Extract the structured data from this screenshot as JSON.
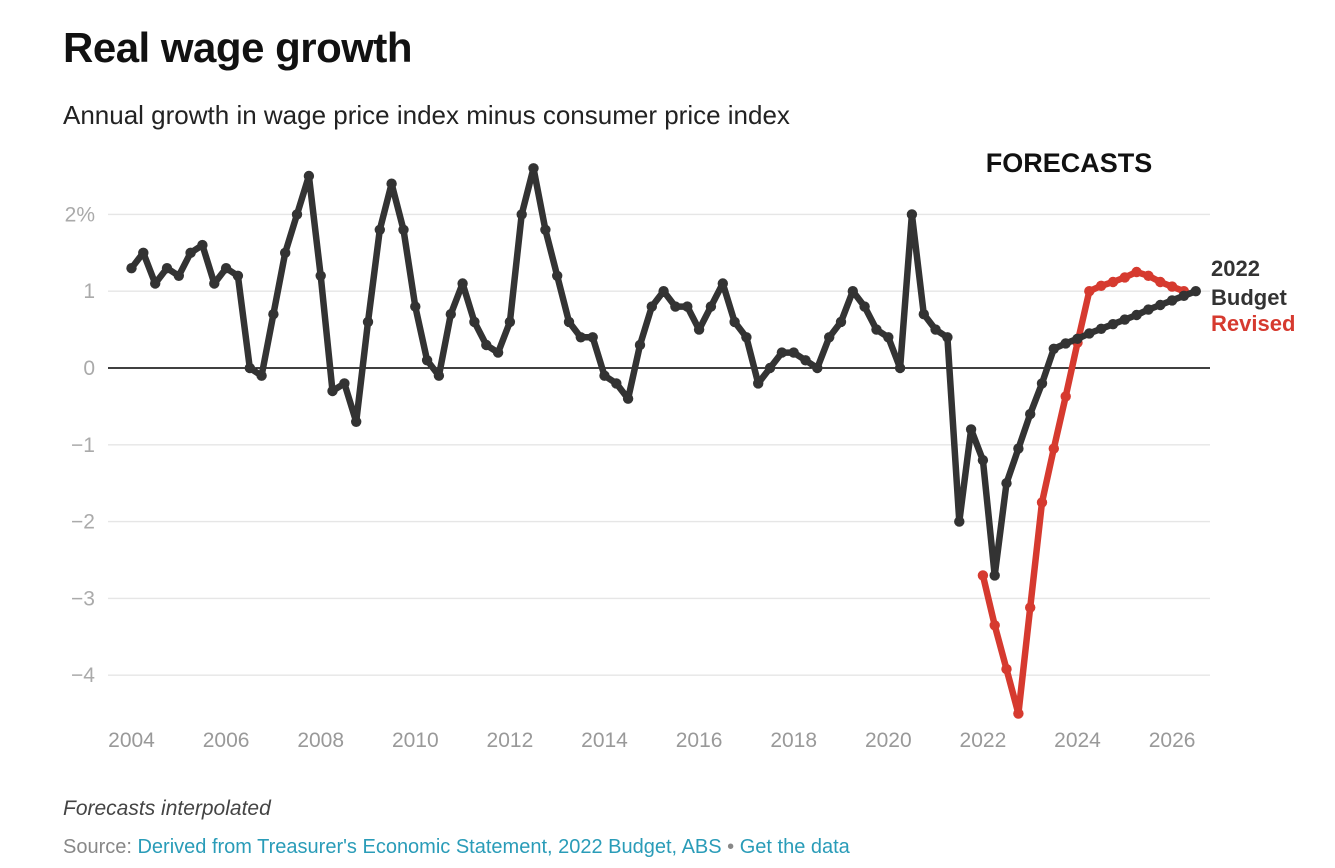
{
  "title": "Real wage growth",
  "subtitle": "Annual growth in wage price index minus consumer price index",
  "note": "Forecasts interpolated",
  "source": {
    "prefix": "Source: ",
    "link_label": "Derived from Treasurer's Economic Statement, 2022 Budget, ABS",
    "separator": " • ",
    "data_link_label": "Get the data"
  },
  "colors": {
    "budget": "#333333",
    "revised": "#d63a2f",
    "gridline": "#e6e6e6",
    "zero_line": "#000000",
    "tick_text": "#aaaaaa",
    "link": "#2a9cb8"
  },
  "chart_data": {
    "type": "line",
    "title": "Real wage growth",
    "subtitle": "Annual growth in wage price index minus consumer price index",
    "annotation": "FORECASTS",
    "xlim": [
      2003.6,
      2027.2
    ],
    "ylim": [
      -4.6,
      2.6
    ],
    "x_ticks": [
      {
        "value": 2004,
        "label": "2004"
      },
      {
        "value": 2006,
        "label": "2006"
      },
      {
        "value": 2008,
        "label": "2008"
      },
      {
        "value": 2010,
        "label": "2010"
      },
      {
        "value": 2012,
        "label": "2012"
      },
      {
        "value": 2014,
        "label": "2014"
      },
      {
        "value": 2016,
        "label": "2016"
      },
      {
        "value": 2018,
        "label": "2018"
      },
      {
        "value": 2020,
        "label": "2020"
      },
      {
        "value": 2022,
        "label": "2022"
      },
      {
        "value": 2024,
        "label": "2024"
      },
      {
        "value": 2026,
        "label": "2026"
      }
    ],
    "y_ticks": [
      {
        "value": 2,
        "label": "2%"
      },
      {
        "value": 1,
        "label": "1"
      },
      {
        "value": 0,
        "label": "0"
      },
      {
        "value": -1,
        "label": "−1"
      },
      {
        "value": -2,
        "label": "−2"
      },
      {
        "value": -3,
        "label": "−3"
      },
      {
        "value": -4,
        "label": "−4"
      }
    ],
    "grid": true,
    "series": [
      {
        "name": "Revised",
        "label_line": "Revised",
        "color": "#d63a2f",
        "points": [
          [
            2022.0,
            -2.7
          ],
          [
            2022.25,
            -3.35
          ],
          [
            2022.5,
            -3.92
          ],
          [
            2022.75,
            -4.5
          ],
          [
            2023.0,
            -3.12
          ],
          [
            2023.25,
            -1.75
          ],
          [
            2023.5,
            -1.05
          ],
          [
            2023.75,
            -0.37
          ],
          [
            2024.0,
            0.33
          ],
          [
            2024.25,
            1.0
          ],
          [
            2024.5,
            1.07
          ],
          [
            2024.75,
            1.12
          ],
          [
            2025.0,
            1.18
          ],
          [
            2025.25,
            1.25
          ],
          [
            2025.5,
            1.2
          ],
          [
            2025.75,
            1.12
          ],
          [
            2026.0,
            1.06
          ],
          [
            2026.25,
            1.0
          ]
        ]
      },
      {
        "name": "2022 Budget",
        "label_line1": "2022",
        "label_line2": "Budget",
        "color": "#333333",
        "points": [
          [
            2004.0,
            1.3
          ],
          [
            2004.25,
            1.5
          ],
          [
            2004.5,
            1.1
          ],
          [
            2004.75,
            1.3
          ],
          [
            2005.0,
            1.2
          ],
          [
            2005.25,
            1.5
          ],
          [
            2005.5,
            1.6
          ],
          [
            2005.75,
            1.1
          ],
          [
            2006.0,
            1.3
          ],
          [
            2006.25,
            1.2
          ],
          [
            2006.5,
            0.0
          ],
          [
            2006.75,
            -0.1
          ],
          [
            2007.0,
            0.7
          ],
          [
            2007.25,
            1.5
          ],
          [
            2007.5,
            2.0
          ],
          [
            2007.75,
            2.5
          ],
          [
            2008.0,
            1.2
          ],
          [
            2008.25,
            -0.3
          ],
          [
            2008.5,
            -0.2
          ],
          [
            2008.75,
            -0.7
          ],
          [
            2009.0,
            0.6
          ],
          [
            2009.25,
            1.8
          ],
          [
            2009.5,
            2.4
          ],
          [
            2009.75,
            1.8
          ],
          [
            2010.0,
            0.8
          ],
          [
            2010.25,
            0.1
          ],
          [
            2010.5,
            -0.1
          ],
          [
            2010.75,
            0.7
          ],
          [
            2011.0,
            1.1
          ],
          [
            2011.25,
            0.6
          ],
          [
            2011.5,
            0.3
          ],
          [
            2011.75,
            0.2
          ],
          [
            2012.0,
            0.6
          ],
          [
            2012.25,
            2.0
          ],
          [
            2012.5,
            2.6
          ],
          [
            2012.75,
            1.8
          ],
          [
            2013.0,
            1.2
          ],
          [
            2013.25,
            0.6
          ],
          [
            2013.5,
            0.4
          ],
          [
            2013.75,
            0.4
          ],
          [
            2014.0,
            -0.1
          ],
          [
            2014.25,
            -0.2
          ],
          [
            2014.5,
            -0.4
          ],
          [
            2014.75,
            0.3
          ],
          [
            2015.0,
            0.8
          ],
          [
            2015.25,
            1.0
          ],
          [
            2015.5,
            0.8
          ],
          [
            2015.75,
            0.8
          ],
          [
            2016.0,
            0.5
          ],
          [
            2016.25,
            0.8
          ],
          [
            2016.5,
            1.1
          ],
          [
            2016.75,
            0.6
          ],
          [
            2017.0,
            0.4
          ],
          [
            2017.25,
            -0.2
          ],
          [
            2017.5,
            0.0
          ],
          [
            2017.75,
            0.2
          ],
          [
            2018.0,
            0.2
          ],
          [
            2018.25,
            0.1
          ],
          [
            2018.5,
            0.0
          ],
          [
            2018.75,
            0.4
          ],
          [
            2019.0,
            0.6
          ],
          [
            2019.25,
            1.0
          ],
          [
            2019.5,
            0.8
          ],
          [
            2019.75,
            0.5
          ],
          [
            2020.0,
            0.4
          ],
          [
            2020.25,
            0.0
          ],
          [
            2020.5,
            2.0
          ],
          [
            2020.75,
            0.7
          ],
          [
            2021.0,
            0.5
          ],
          [
            2021.25,
            0.4
          ],
          [
            2021.5,
            -2.0
          ],
          [
            2021.75,
            -0.8
          ],
          [
            2022.0,
            -1.2
          ],
          [
            2022.25,
            -2.7
          ],
          [
            2022.5,
            -1.5
          ],
          [
            2022.75,
            -1.05
          ],
          [
            2023.0,
            -0.6
          ],
          [
            2023.25,
            -0.2
          ],
          [
            2023.5,
            0.25
          ],
          [
            2023.75,
            0.32
          ],
          [
            2024.0,
            0.38
          ],
          [
            2024.25,
            0.45
          ],
          [
            2024.5,
            0.51
          ],
          [
            2024.75,
            0.57
          ],
          [
            2025.0,
            0.63
          ],
          [
            2025.25,
            0.69
          ],
          [
            2025.5,
            0.76
          ],
          [
            2025.75,
            0.82
          ],
          [
            2026.0,
            0.88
          ],
          [
            2026.25,
            0.94
          ],
          [
            2026.5,
            1.0
          ]
        ]
      }
    ]
  }
}
